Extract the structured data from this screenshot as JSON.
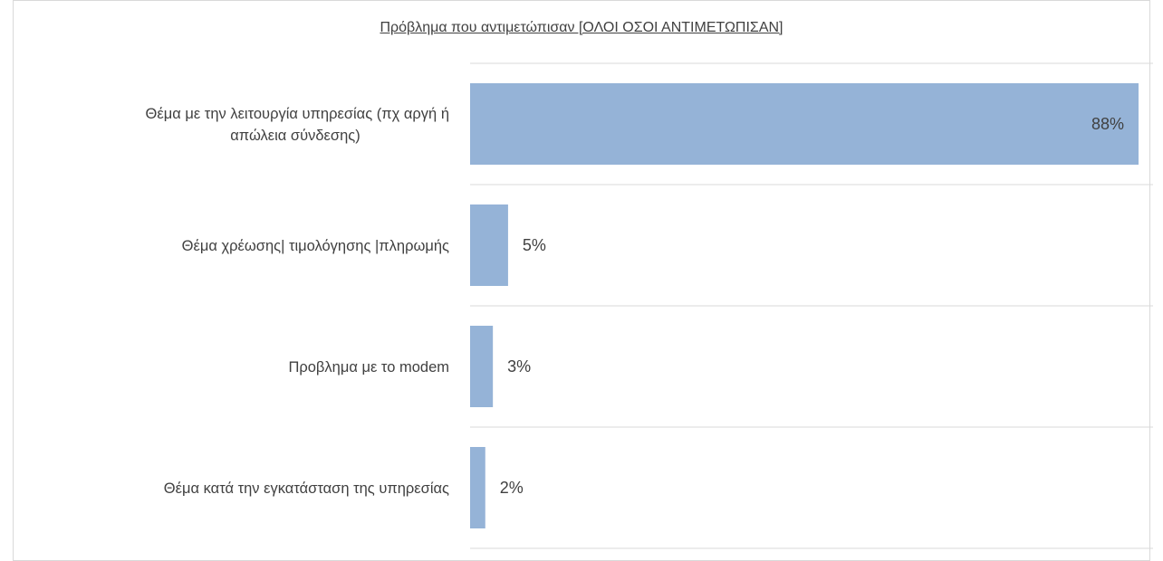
{
  "chart_data": {
    "type": "bar",
    "orientation": "horizontal",
    "title": "Πρόβλημα που αντιμετώπισαν [ΟΛΟΙ ΟΣΟΙ ΑΝΤΙΜΕΤΩΠΙΣΑΝ]",
    "categories": [
      [
        "Θέμα με την λειτουργία υπηρεσίας (πχ αργή ή",
        "απώλεια σύνδεσης)"
      ],
      [
        "Θέμα χρέωσης| τιμολόγησης |πληρωμής"
      ],
      [
        "Προβλημα με το modem"
      ],
      [
        "Θέμα κατά την εγκατάσταση της υπηρεσίας"
      ]
    ],
    "values": [
      88,
      5,
      3,
      2
    ],
    "value_labels": [
      "88%",
      "5%",
      "3%",
      "2%"
    ],
    "xlim": [
      0,
      88
    ],
    "bar_color": "#95b3d7",
    "gridline_color": "#d9d9d9",
    "grid": true
  }
}
